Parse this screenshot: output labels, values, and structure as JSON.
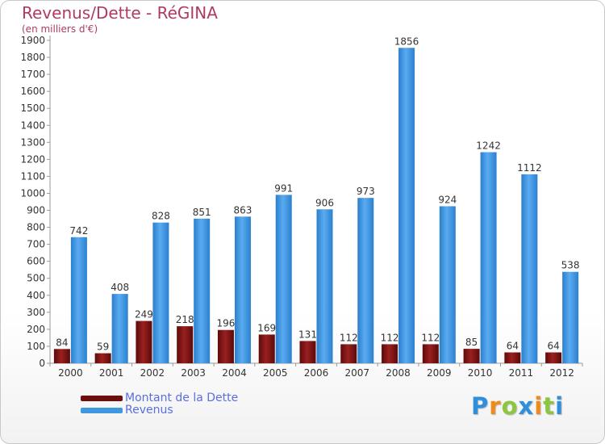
{
  "header": {
    "title": "Revenus/Dette - RéGINA",
    "subtitle": "(en milliers d'€)"
  },
  "colors": {
    "title": "#b03a64",
    "dette": "#7a1010",
    "revenus": "#3f97e0",
    "legend_text": "#5b6ee0"
  },
  "logo": {
    "letters": [
      "P",
      "r",
      "o",
      "x",
      "i",
      "t",
      "i"
    ],
    "colors": [
      "#2f8fdc",
      "#f08a1a",
      "#8cc63f",
      "#2f8fdc",
      "#f08a1a",
      "#8cc63f",
      "#2f8fdc"
    ]
  },
  "chart_data": {
    "type": "bar",
    "title": "Revenus/Dette - RéGINA",
    "subtitle": "(en milliers d'€)",
    "categories": [
      "2000",
      "2001",
      "2002",
      "2003",
      "2004",
      "2005",
      "2006",
      "2007",
      "2008",
      "2009",
      "2010",
      "2011",
      "2012"
    ],
    "series": [
      {
        "name": "Montant de la Dette",
        "color": "#7a1010",
        "values": [
          84,
          59,
          249,
          218,
          196,
          169,
          131,
          112,
          112,
          112,
          85,
          64,
          64
        ]
      },
      {
        "name": "Revenus",
        "color": "#3f97e0",
        "values": [
          742,
          408,
          828,
          851,
          863,
          991,
          906,
          973,
          1856,
          924,
          1242,
          1112,
          538
        ]
      }
    ],
    "ylim": [
      0,
      1900
    ],
    "yticks": [
      0,
      100,
      200,
      300,
      400,
      500,
      600,
      700,
      800,
      900,
      1000,
      1100,
      1200,
      1300,
      1400,
      1500,
      1600,
      1700,
      1800,
      1900
    ],
    "grid": false,
    "legend_position": "bottom-left"
  }
}
